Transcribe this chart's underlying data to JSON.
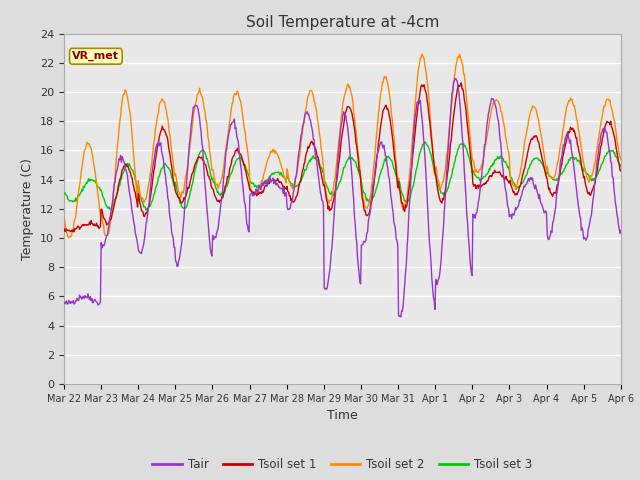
{
  "title": "Soil Temperature at -4cm",
  "xlabel": "Time",
  "ylabel": "Temperature (C)",
  "ylim": [
    0,
    24
  ],
  "yticks": [
    0,
    2,
    4,
    6,
    8,
    10,
    12,
    14,
    16,
    18,
    20,
    22,
    24
  ],
  "colors": {
    "Tair": "#9933cc",
    "Tsoil_set1": "#cc0000",
    "Tsoil_set2": "#ff8800",
    "Tsoil_set3": "#00cc00"
  },
  "legend_labels": [
    "Tair",
    "Tsoil set 1",
    "Tsoil set 2",
    "Tsoil set 3"
  ],
  "annotation_text": "VR_met",
  "bg_color": "#dddddd",
  "plot_bg_color": "#e8e8e8",
  "grid_color": "#ffffff",
  "xtick_labels": [
    "Mar 22",
    "Mar 23",
    "Mar 24",
    "Mar 25",
    "Mar 26",
    "Mar 27",
    "Mar 28",
    "Mar 29",
    "Mar 30",
    "Mar 31",
    "Apr 1",
    "Apr 2",
    "Apr 3",
    "Apr 4",
    "Apr 5",
    "Apr 6"
  ],
  "n_days": 15,
  "n_per_day": 48,
  "tair_mins": [
    5.5,
    9.5,
    9.0,
    8.2,
    10.0,
    13.0,
    12.0,
    6.5,
    9.5,
    4.5,
    7.0,
    11.5,
    11.5,
    10.0,
    10.0,
    10.5
  ],
  "tair_maxes": [
    6.0,
    15.5,
    16.5,
    19.2,
    18.0,
    14.0,
    18.5,
    18.5,
    16.5,
    19.5,
    21.0,
    19.5,
    14.0,
    17.0,
    17.5,
    11.5
  ],
  "tsoil1_mins": [
    10.5,
    11.0,
    11.5,
    12.5,
    12.5,
    13.0,
    12.5,
    12.0,
    11.5,
    12.0,
    12.5,
    13.5,
    13.0,
    13.0,
    13.0,
    13.5
  ],
  "tsoil1_maxes": [
    11.0,
    15.0,
    17.5,
    15.5,
    16.0,
    14.0,
    16.5,
    19.0,
    19.0,
    20.5,
    20.5,
    14.5,
    17.0,
    17.5,
    18.0,
    17.5
  ],
  "tsoil2_mins": [
    10.0,
    10.0,
    12.5,
    13.0,
    13.5,
    13.0,
    13.5,
    12.5,
    12.0,
    12.0,
    13.5,
    14.5,
    13.5,
    14.0,
    14.0,
    14.5
  ],
  "tsoil2_maxes": [
    16.5,
    20.0,
    19.5,
    20.0,
    20.0,
    16.0,
    20.0,
    20.5,
    21.0,
    22.5,
    22.5,
    19.5,
    19.0,
    19.5,
    19.5,
    18.5
  ],
  "tsoil3_mins": [
    12.5,
    12.0,
    12.0,
    12.0,
    13.0,
    13.5,
    13.5,
    13.0,
    12.5,
    12.5,
    13.0,
    14.0,
    13.5,
    14.0,
    14.0,
    14.5
  ],
  "tsoil3_maxes": [
    14.0,
    15.0,
    15.0,
    16.0,
    15.5,
    14.5,
    15.5,
    15.5,
    15.5,
    16.5,
    16.5,
    15.5,
    15.5,
    15.5,
    16.0,
    15.5
  ]
}
